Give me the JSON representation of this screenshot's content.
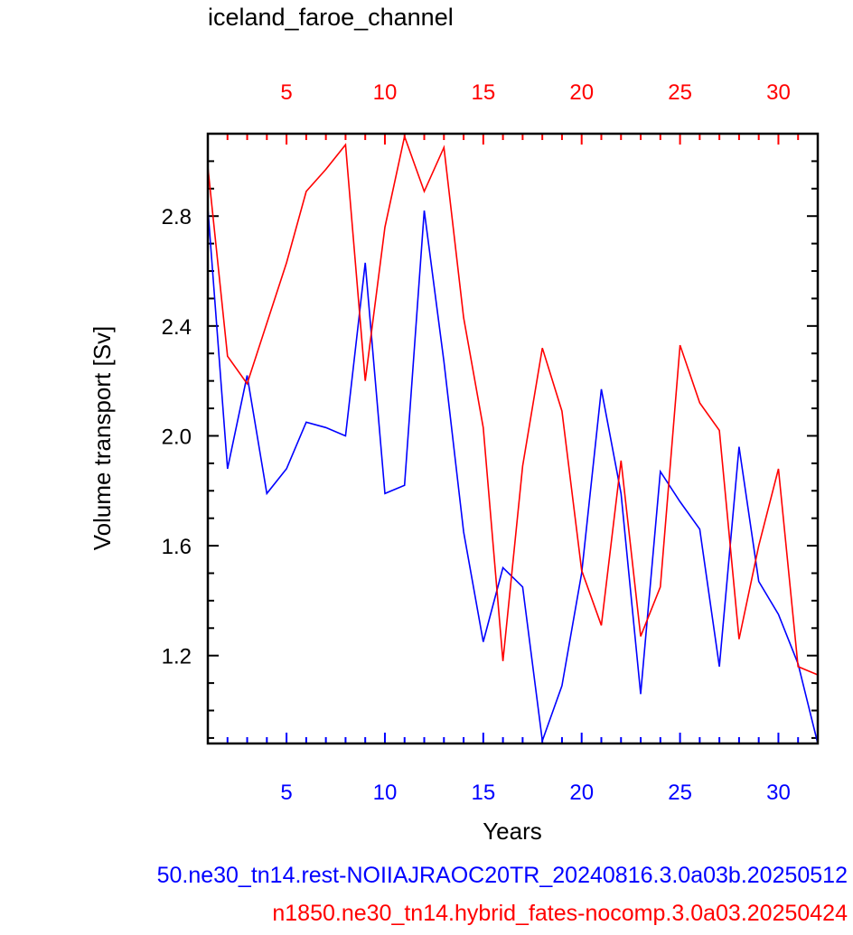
{
  "chart_data": {
    "type": "line",
    "title": "iceland_faroe_channel",
    "xlabel": "Years",
    "ylabel": "Volume transport [Sv]",
    "xlim": [
      1,
      32
    ],
    "ylim": [
      0.88,
      3.1
    ],
    "y_ticks": [
      "1.2",
      "1.6",
      "2.0",
      "2.4",
      "2.8"
    ],
    "x_ticks": [
      "5",
      "10",
      "15",
      "20",
      "25",
      "30"
    ],
    "grid": false,
    "legend": "bottom",
    "series": [
      {
        "name": "50.ne30_tn14.rest-NOIIAJRAOC20TR_20240816.3.0a03b.20250512",
        "color": "#0000ff",
        "axis": "bottom",
        "x": [
          1,
          2,
          3,
          4,
          5,
          6,
          7,
          8,
          9,
          10,
          11,
          12,
          13,
          14,
          15,
          16,
          17,
          18,
          19,
          20,
          21,
          22,
          23,
          24,
          25,
          26,
          27,
          28,
          29,
          30,
          31,
          32
        ],
        "values": [
          2.83,
          1.88,
          2.22,
          1.79,
          1.88,
          2.05,
          2.03,
          2.0,
          2.63,
          1.79,
          1.82,
          2.82,
          2.27,
          1.65,
          1.25,
          1.52,
          1.45,
          0.89,
          1.09,
          1.5,
          2.17,
          1.79,
          1.06,
          1.87,
          1.76,
          1.66,
          1.16,
          1.96,
          1.47,
          1.35,
          1.17,
          0.88
        ]
      },
      {
        "name": "n1850.ne30_tn14.hybrid_fates-nocomp.3.0a03.20250424",
        "color": "#ff0000",
        "axis": "top",
        "x": [
          1,
          2,
          3,
          4,
          5,
          6,
          7,
          8,
          9,
          10,
          11,
          12,
          13,
          14,
          15,
          16,
          17,
          18,
          19,
          20,
          21,
          22,
          23,
          24,
          25,
          26,
          27,
          28,
          29,
          30,
          31,
          32
        ],
        "values": [
          2.98,
          2.29,
          2.19,
          2.41,
          2.63,
          2.89,
          2.97,
          3.06,
          2.2,
          2.76,
          3.09,
          2.89,
          3.05,
          2.43,
          2.03,
          1.18,
          1.89,
          2.32,
          2.09,
          1.51,
          1.31,
          1.91,
          1.27,
          1.45,
          2.33,
          2.12,
          2.02,
          1.26,
          1.6,
          1.88,
          1.16,
          1.13
        ]
      }
    ]
  }
}
